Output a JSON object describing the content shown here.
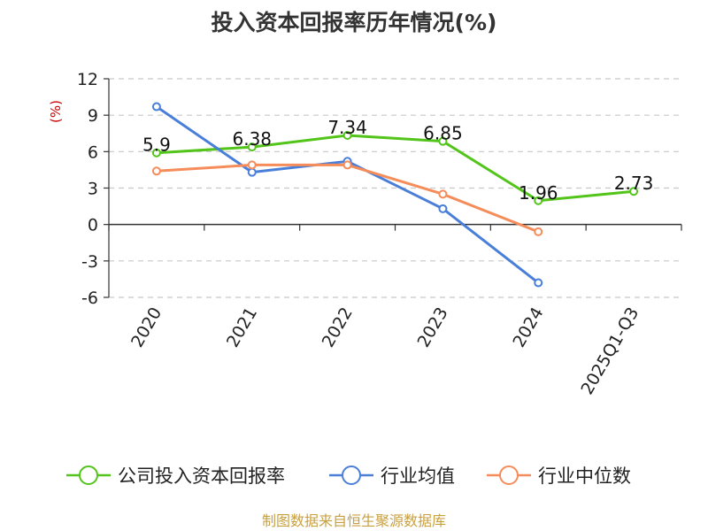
{
  "chart_data": {
    "type": "line",
    "title": "投入资本回报率历年情况(%)",
    "ylabel": "(%)",
    "categories": [
      "2020",
      "2021",
      "2022",
      "2023",
      "2024",
      "2025Q1-Q3"
    ],
    "ylim": [
      -6,
      12
    ],
    "yticks": [
      12,
      9,
      6,
      3,
      0,
      -3,
      -6
    ],
    "ytick_labels": [
      "12",
      "9",
      "6",
      "3",
      "0",
      "-3",
      "-6"
    ],
    "grid": true,
    "legend_position": "bottom",
    "series": [
      {
        "name": "公司投入资本回报率",
        "color": "#52c41a",
        "values": [
          5.9,
          6.38,
          7.34,
          6.85,
          1.96,
          2.73
        ],
        "labels": [
          "5.9",
          "6.38",
          "7.34",
          "6.85",
          "1.96",
          "2.73"
        ]
      },
      {
        "name": "行业均值",
        "color": "#4a7fd9",
        "values": [
          9.7,
          4.3,
          5.2,
          1.3,
          -4.8,
          null
        ],
        "labels": []
      },
      {
        "name": "行业中位数",
        "color": "#f58c5a",
        "values": [
          4.4,
          4.9,
          4.9,
          2.5,
          -0.6,
          null
        ],
        "labels": []
      }
    ]
  },
  "source": "制图数据来自恒生聚源数据库",
  "source_color": "#c8a040"
}
